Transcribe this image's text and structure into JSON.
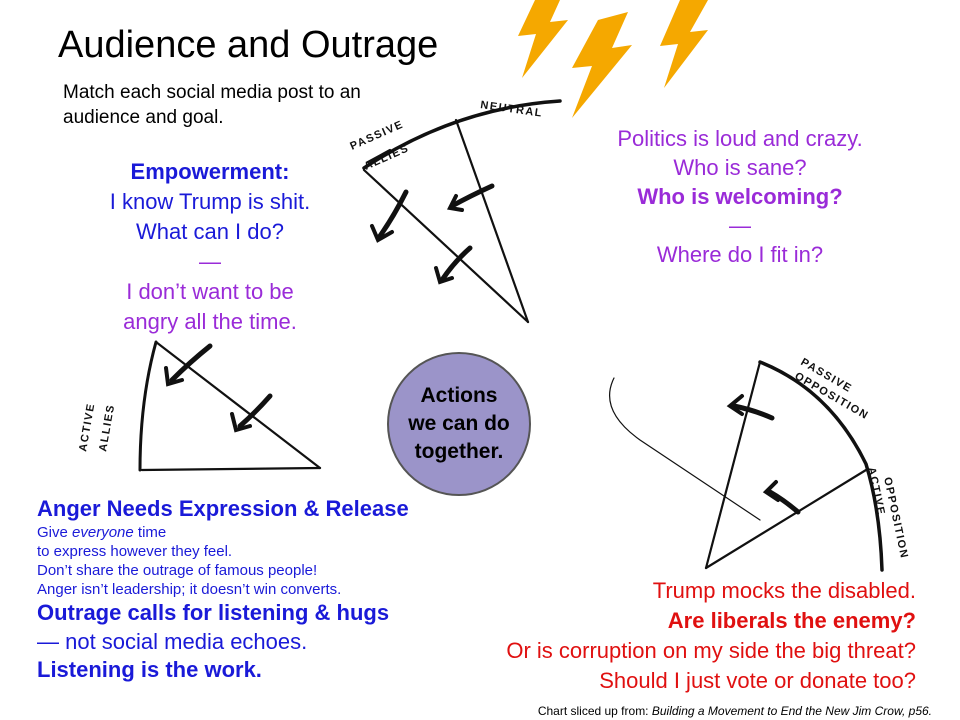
{
  "title": "Audience and Outrage",
  "subtitle": "Match each social media post to an audience and goal.",
  "empowerment": {
    "heading": "Empowerment:",
    "lines": [
      "I know Trump is shit.",
      "What can I do?"
    ],
    "dash": "—",
    "purple_lines": [
      "I don’t want to be",
      "angry all the time."
    ]
  },
  "politics": {
    "lines": [
      "Politics is loud and crazy.",
      "Who is sane?"
    ],
    "bold": "Who is welcoming?",
    "dash": "—",
    "last": "Where do I fit in?"
  },
  "bubble": [
    "Actions",
    "we can do",
    "together."
  ],
  "anger": {
    "heading": "Anger Needs Expression & Release",
    "give_prefix": "Give ",
    "give_em": "everyone",
    "give_suffix": " time",
    "small": [
      "to express however they feel.",
      "Don’t share the outrage of famous people!",
      "Anger isn’t leadership; it doesn’t win converts."
    ],
    "bold1": "Outrage calls for listening & hugs",
    "plain": "— not social media echoes.",
    "bold2": "Listening is the work."
  },
  "trump": {
    "line1": "Trump mocks the disabled.",
    "bold": "Are liberals the enemy?",
    "line3": "Or is corruption on my side the big threat?",
    "line4": "Should I just vote or donate too?"
  },
  "credit": {
    "prefix": "Chart sliced up from: ",
    "book": "Building a Movement to End the New Jim Crow, p56."
  },
  "sketch_labels": {
    "neutral": "NEUTRAL",
    "passive_allies": [
      "PASSIVE",
      "ALLIES"
    ],
    "active_allies": [
      "ACTIVE",
      "ALLIES"
    ],
    "passive_opposition": [
      "PASSIVE",
      "OPPOSITION"
    ],
    "active_opposition": [
      "ACTIVE",
      "OPPOSITION"
    ]
  },
  "colors": {
    "blue": "#1a1ad8",
    "purple": "#9a2bd8",
    "red": "#e01010",
    "bubble": "#9b94c9",
    "lightning": "#f5a800"
  }
}
